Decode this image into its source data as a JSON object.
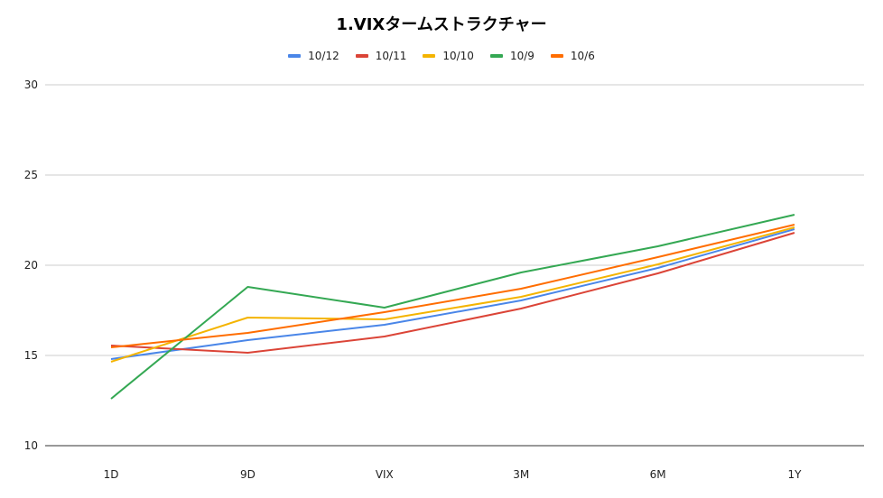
{
  "chart_data": {
    "type": "line",
    "title": "1.VIXタームストラクチャー",
    "categories": [
      "1D",
      "9D",
      "VIX",
      "3M",
      "6M",
      "1Y"
    ],
    "ylim": [
      10,
      30
    ],
    "yticks": [
      10,
      15,
      20,
      25,
      30
    ],
    "grid": true,
    "legend_position": "top",
    "series": [
      {
        "name": "10/12",
        "color": "#4a86e8",
        "values": [
          14.8,
          15.85,
          16.7,
          18.05,
          19.85,
          22.0
        ]
      },
      {
        "name": "10/11",
        "color": "#db4437",
        "values": [
          15.55,
          15.15,
          16.05,
          17.6,
          19.55,
          21.8
        ]
      },
      {
        "name": "10/10",
        "color": "#f4b400",
        "values": [
          14.65,
          17.1,
          17.0,
          18.25,
          20.05,
          22.1
        ]
      },
      {
        "name": "10/9",
        "color": "#34a853",
        "values": [
          12.6,
          18.8,
          17.65,
          19.6,
          21.05,
          22.8
        ]
      },
      {
        "name": "10/6",
        "color": "#ff6d00",
        "values": [
          15.45,
          16.25,
          17.4,
          18.7,
          20.45,
          22.25
        ]
      }
    ]
  }
}
